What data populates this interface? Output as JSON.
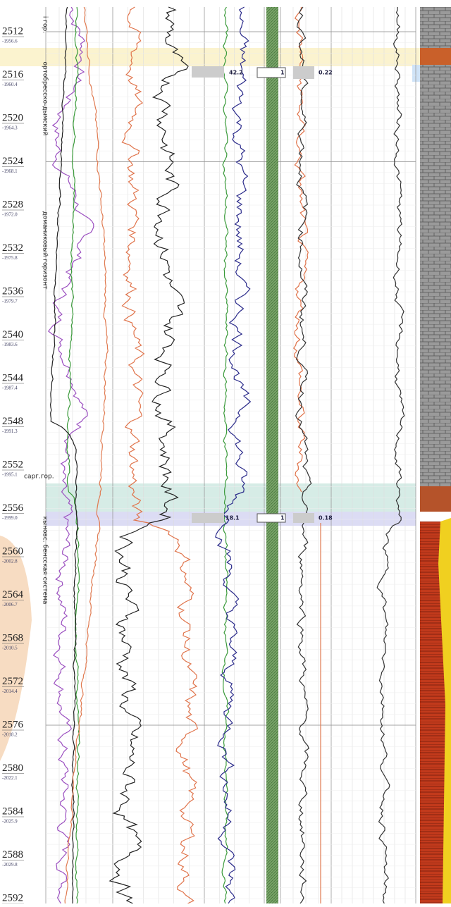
{
  "depth_labels": [
    "2512",
    "2516",
    "2520",
    "2524",
    "2528",
    "2532",
    "2536",
    "2540",
    "2544",
    "2548",
    "2552",
    "2556",
    "2560",
    "2564",
    "2568",
    "2572",
    "2576",
    "2580",
    "2584",
    "2588",
    "2592"
  ],
  "absolute_labels": [
    "-1956.6",
    "-1960.4",
    "-1964.3",
    "-1968.1",
    "-1972.0",
    "-1975.8",
    "-1979.7",
    "-1983.6",
    "-1987.4",
    "-1991.3",
    "-1995.1",
    "-1999.0",
    "-2002.8",
    "-2006.7",
    "-2010.5",
    "-2014.4",
    "-2018.2",
    "-2022.1",
    "-2025.9",
    "-2029.8"
  ],
  "formations": {
    "top": "і гор.",
    "upper": "ортобресско-дымский",
    "middle": "доманиковый горизонт",
    "sargaev": "сарг.гор.",
    "lower": "кыновс. бенсская система"
  },
  "annotations": {
    "upper_a": "42.2",
    "upper_b": "0.22",
    "lower_a": "18.1",
    "lower_b": "0.18",
    "upper_n": "1",
    "lower_n": "1"
  }
}
